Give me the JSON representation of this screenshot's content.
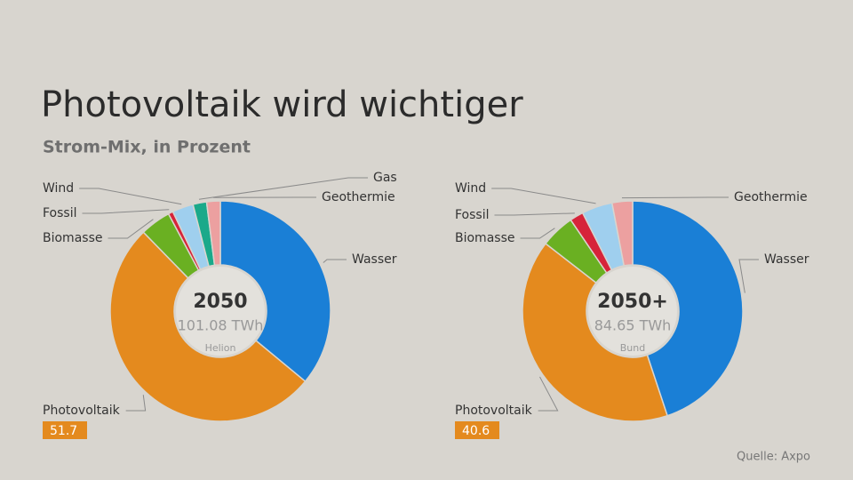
{
  "title": "Photovoltaik wird wichtiger",
  "subtitle": "Strom-Mix, in Prozent",
  "source": "Quelle: Axpo",
  "chart_data": [
    {
      "type": "pie",
      "center_title": "2050",
      "center_subtitle": "101.08 TWh",
      "center_note": "Helion",
      "categories": [
        "Wasser",
        "Photovoltaik",
        "Biomasse",
        "Fossil",
        "Wind",
        "Gas",
        "Geothermie"
      ],
      "values": [
        36,
        51.7,
        4.5,
        0.7,
        3.1,
        2,
        2
      ],
      "colors": [
        "#1a7fd6",
        "#e48a1e",
        "#6ab022",
        "#d6243a",
        "#9fcfee",
        "#1aa98a",
        "#eca0a0"
      ]
    },
    {
      "type": "pie",
      "center_title": "2050+",
      "center_subtitle": "84.65 TWh",
      "center_note": "Bund",
      "categories": [
        "Wasser",
        "Photovoltaik",
        "Biomasse",
        "Fossil",
        "Wind",
        "Geothermie"
      ],
      "values": [
        44.9,
        40.6,
        5,
        2,
        4.5,
        3
      ],
      "colors": [
        "#1a7fd6",
        "#e48a1e",
        "#6ab022",
        "#d6243a",
        "#9fcfee",
        "#eca0a0"
      ]
    }
  ]
}
